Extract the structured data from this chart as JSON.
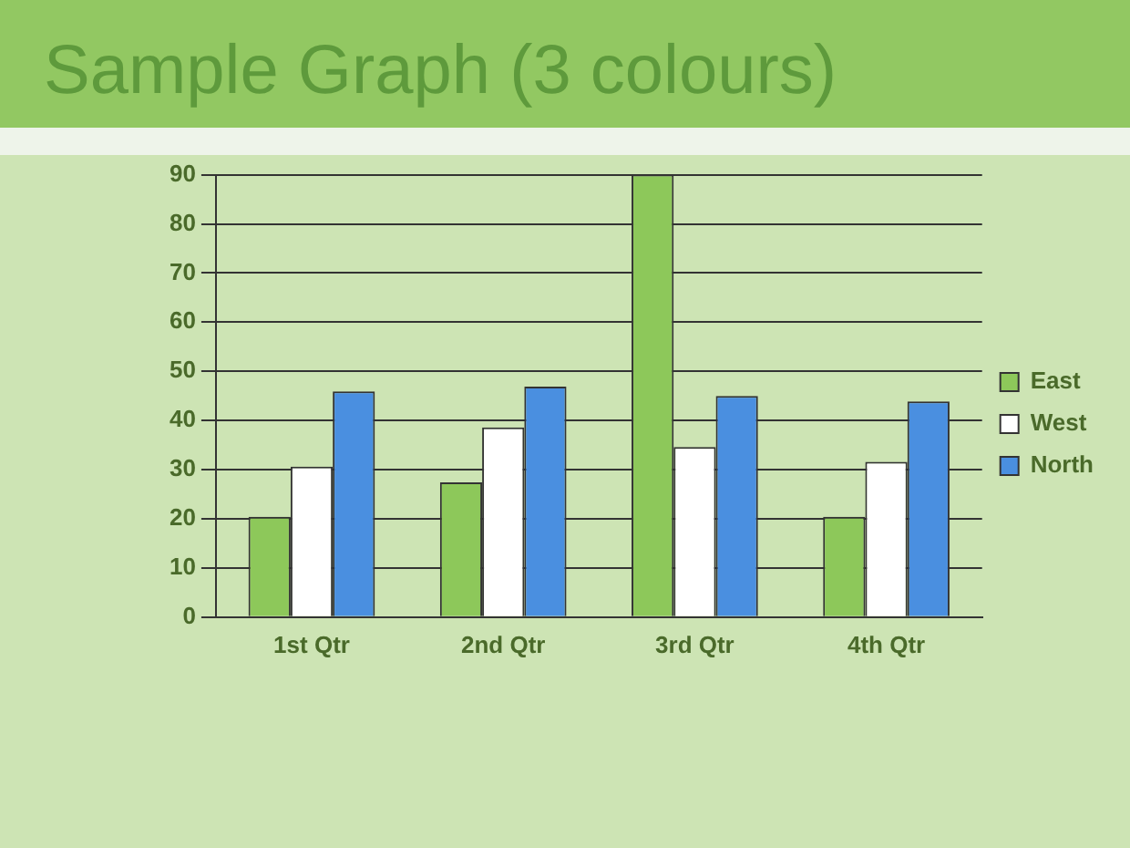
{
  "chart_data": {
    "type": "bar",
    "title": "Sample Graph (3 colours)",
    "categories": [
      "1st Qtr",
      "2nd Qtr",
      "3rd Qtr",
      "4th Qtr"
    ],
    "series": [
      {
        "name": "East",
        "color": "#8dc85a",
        "values": [
          20.4,
          27.4,
          90,
          20.4
        ]
      },
      {
        "name": "West",
        "color": "#ffffff",
        "values": [
          30.6,
          38.6,
          34.6,
          31.6
        ]
      },
      {
        "name": "North",
        "color": "#4a8fe0",
        "values": [
          45.9,
          46.9,
          45,
          43.9
        ]
      }
    ],
    "ylim": [
      0,
      90
    ],
    "yticks": [
      0,
      10,
      20,
      30,
      40,
      50,
      60,
      70,
      80,
      90
    ],
    "grid": "y",
    "legend": "right"
  }
}
